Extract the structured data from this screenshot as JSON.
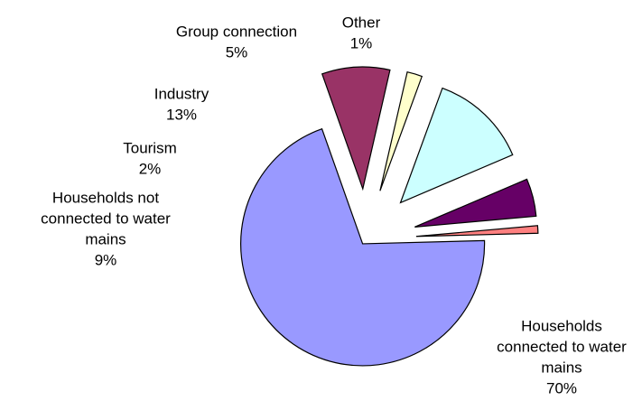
{
  "chart_data": {
    "type": "pie",
    "title": "",
    "exploded": true,
    "labels": [
      "Households connected to water mains",
      "Households not connected to water mains",
      "Tourism",
      "Industry",
      "Group connection",
      "Other"
    ],
    "values": [
      70,
      9,
      2,
      13,
      5,
      1
    ],
    "value_labels": [
      "70%",
      "9%",
      "2%",
      "13%",
      "5%",
      "1%"
    ],
    "colors": [
      "#9999ff",
      "#993366",
      "#ffffcc",
      "#ccffff",
      "#660066",
      "#ff8080"
    ],
    "label_lines": [
      [
        "Households",
        "connected to water",
        "mains",
        "70%"
      ],
      [
        "Households not",
        "connected to water",
        "mains",
        "9%"
      ],
      [
        "Tourism",
        "2%"
      ],
      [
        "Industry",
        "13%"
      ],
      [
        "Group connection",
        "5%"
      ],
      [
        "Other",
        "1%"
      ]
    ]
  }
}
